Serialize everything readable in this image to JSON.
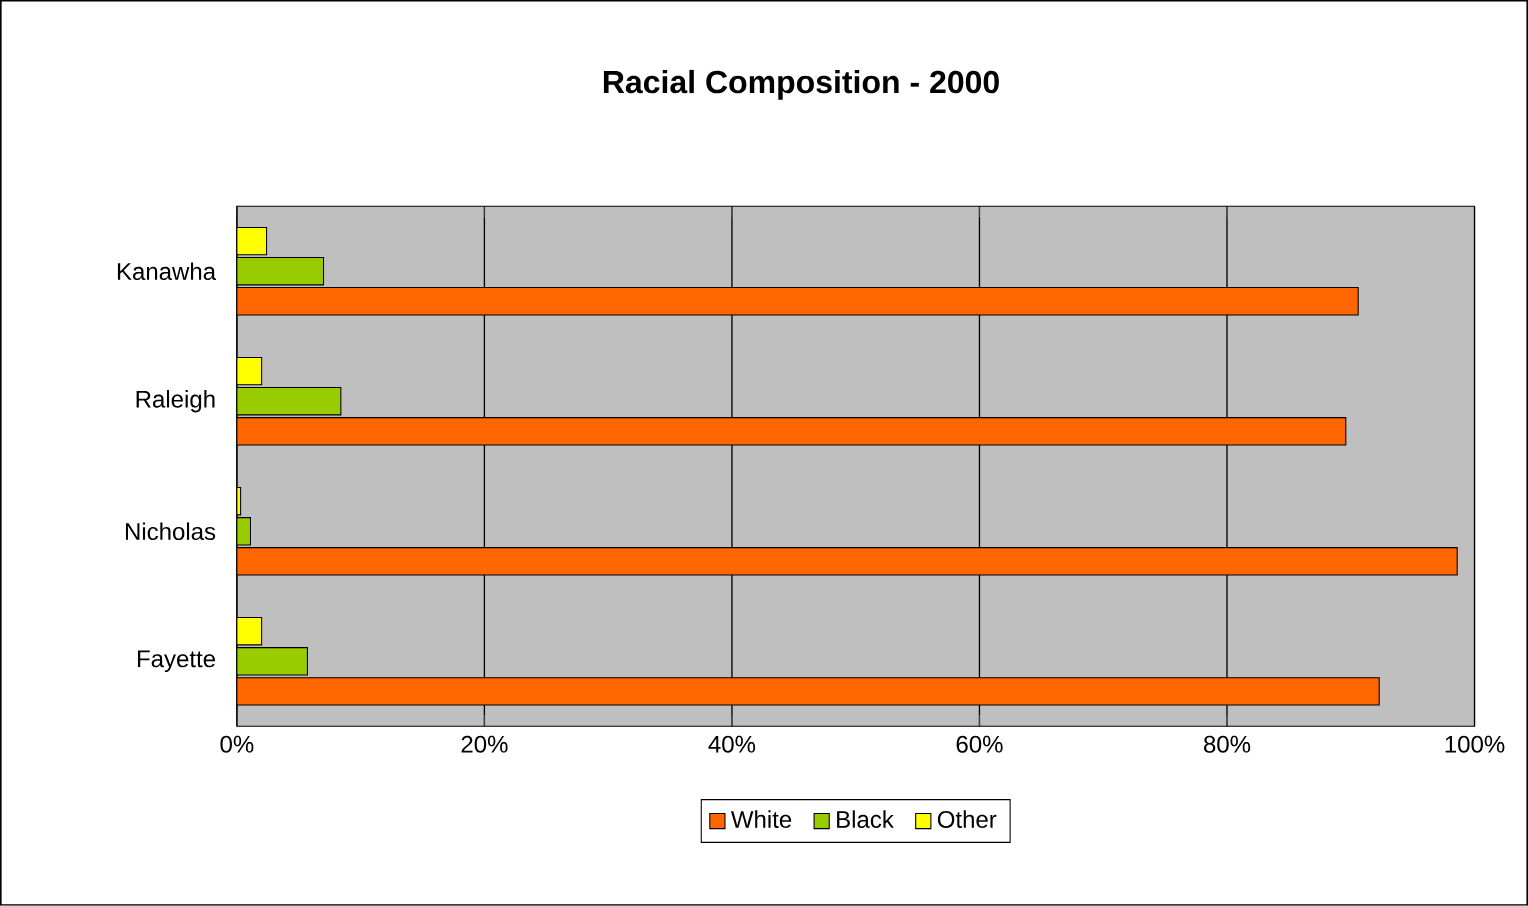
{
  "chart_data": {
    "type": "bar",
    "orientation": "horizontal",
    "title": "Racial Composition - 2000",
    "categories": [
      "Kanawha",
      "Raleigh",
      "Nicholas",
      "Fayette"
    ],
    "series": [
      {
        "name": "White",
        "color": "#ff6600",
        "values": [
          90.6,
          89.6,
          98.6,
          92.3
        ]
      },
      {
        "name": "Black",
        "color": "#99cc00",
        "values": [
          7.0,
          8.4,
          1.1,
          5.7
        ]
      },
      {
        "name": "Other",
        "color": "#ffff00",
        "values": [
          2.4,
          2.0,
          0.3,
          2.0
        ]
      }
    ],
    "xlim": [
      0,
      100
    ],
    "xticks": [
      {
        "value": 0,
        "label": "0%"
      },
      {
        "value": 20,
        "label": "20%"
      },
      {
        "value": 40,
        "label": "40%"
      },
      {
        "value": 60,
        "label": "60%"
      },
      {
        "value": 80,
        "label": "80%"
      },
      {
        "value": 100,
        "label": "100%"
      }
    ],
    "grid": "x",
    "legend": "bottom"
  }
}
